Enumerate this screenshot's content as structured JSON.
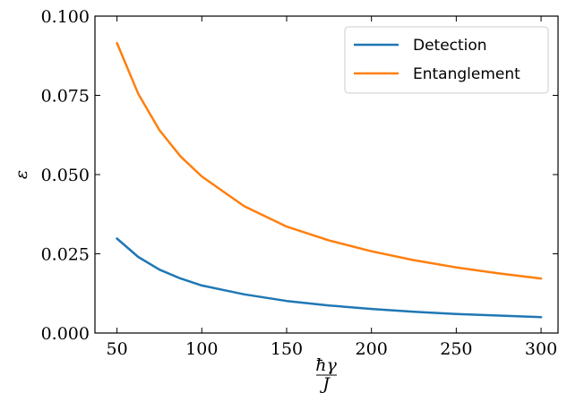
{
  "chart_data": {
    "type": "line",
    "xlabel_num": "ħγ",
    "xlabel_den": "J",
    "ylabel": "ε",
    "xlim": [
      37,
      310
    ],
    "ylim": [
      0.0,
      0.1
    ],
    "xticks": [
      50,
      100,
      150,
      200,
      250,
      300
    ],
    "yticks": [
      0.0,
      0.025,
      0.05,
      0.075,
      0.1
    ],
    "xtick_labels": [
      "50",
      "100",
      "150",
      "200",
      "250",
      "300"
    ],
    "ytick_labels": [
      "0.000",
      "0.025",
      "0.050",
      "0.075",
      "0.100"
    ],
    "legend_position": "top-right",
    "grid": false,
    "series": [
      {
        "name": "Detection",
        "color": "#1f77b4",
        "x": [
          50,
          62.5,
          75,
          87.5,
          100,
          125,
          150,
          175,
          200,
          225,
          250,
          275,
          300
        ],
        "y": [
          0.0298,
          0.024,
          0.02,
          0.0172,
          0.015,
          0.0122,
          0.0101,
          0.0087,
          0.0076,
          0.0067,
          0.006,
          0.0055,
          0.005
        ]
      },
      {
        "name": "Entanglement",
        "color": "#ff7f0e",
        "x": [
          50,
          62.5,
          75,
          87.5,
          100,
          125,
          150,
          175,
          200,
          225,
          250,
          275,
          300
        ],
        "y": [
          0.0915,
          0.0755,
          0.064,
          0.0557,
          0.0494,
          0.04,
          0.0336,
          0.0292,
          0.0258,
          0.023,
          0.0207,
          0.0188,
          0.0172
        ]
      }
    ]
  }
}
